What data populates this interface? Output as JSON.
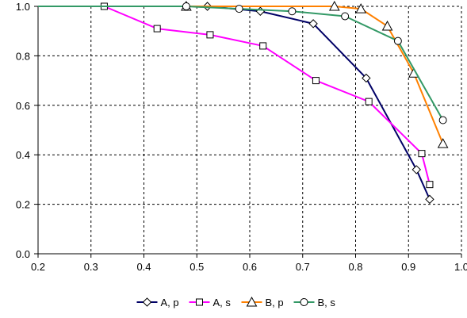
{
  "chart_data": {
    "type": "line",
    "title": "",
    "xlabel": "",
    "ylabel": "",
    "xlim": [
      0.2,
      1.0
    ],
    "ylim": [
      0.0,
      1.0
    ],
    "x_ticks": [
      "0.2",
      "0.3",
      "0.4",
      "0.5",
      "0.6",
      "0.7",
      "0.8",
      "0.9",
      "1.0"
    ],
    "y_ticks": [
      "0.0",
      "0.2",
      "0.4",
      "0.6",
      "0.8",
      "1.0"
    ],
    "grid": true,
    "legend_position": "bottom",
    "series": [
      {
        "name": "A, p",
        "color": "#000066",
        "marker": "diamond",
        "x": [
          0.2,
          0.52,
          0.62,
          0.72,
          0.82,
          0.915,
          0.94
        ],
        "y": [
          1.0,
          1.0,
          0.98,
          0.93,
          0.71,
          0.34,
          0.22
        ]
      },
      {
        "name": "A, s",
        "color": "#FF00FF",
        "marker": "square",
        "x": [
          0.325,
          0.425,
          0.525,
          0.625,
          0.725,
          0.825,
          0.925,
          0.94
        ],
        "y": [
          1.0,
          0.91,
          0.885,
          0.84,
          0.7,
          0.615,
          0.405,
          0.28
        ]
      },
      {
        "name": "B, p",
        "color": "#FF8000",
        "marker": "triangle",
        "x": [
          0.48,
          0.76,
          0.81,
          0.86,
          0.91,
          0.965
        ],
        "y": [
          1.0,
          1.0,
          0.99,
          0.92,
          0.73,
          0.445
        ]
      },
      {
        "name": "B, s",
        "color": "#339966",
        "marker": "circle",
        "x": [
          0.2,
          0.48,
          0.58,
          0.68,
          0.78,
          0.88,
          0.965
        ],
        "y": [
          1.0,
          1.0,
          0.99,
          0.98,
          0.96,
          0.86,
          0.54
        ]
      }
    ]
  }
}
